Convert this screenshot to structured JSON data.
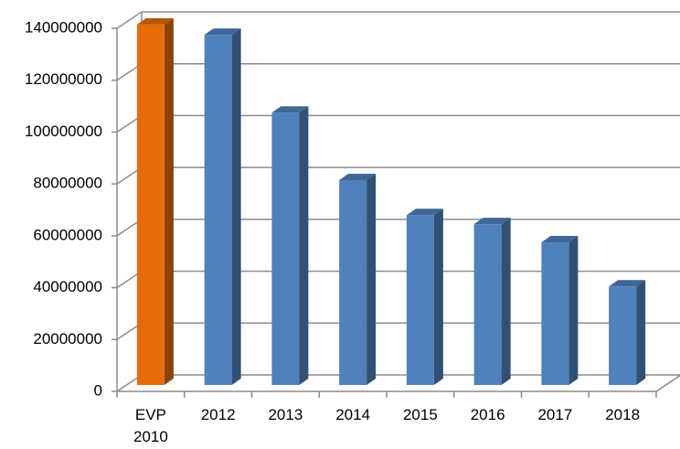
{
  "chart_data": {
    "type": "bar3d",
    "categories": [
      "EVP 2010",
      "2012",
      "2013",
      "2014",
      "2015",
      "2016",
      "2017",
      "2018"
    ],
    "values": [
      139000000,
      135000000,
      105000000,
      79000000,
      65500000,
      62000000,
      55000000,
      38000000
    ],
    "colors": [
      "#e46c0a",
      "#4f81bd",
      "#4f81bd",
      "#4f81bd",
      "#4f81bd",
      "#4f81bd",
      "#4f81bd",
      "#4f81bd"
    ],
    "ylim": [
      0,
      140000000
    ],
    "yticks": [
      0,
      20000000,
      40000000,
      60000000,
      80000000,
      100000000,
      120000000,
      140000000
    ],
    "grid": true
  }
}
